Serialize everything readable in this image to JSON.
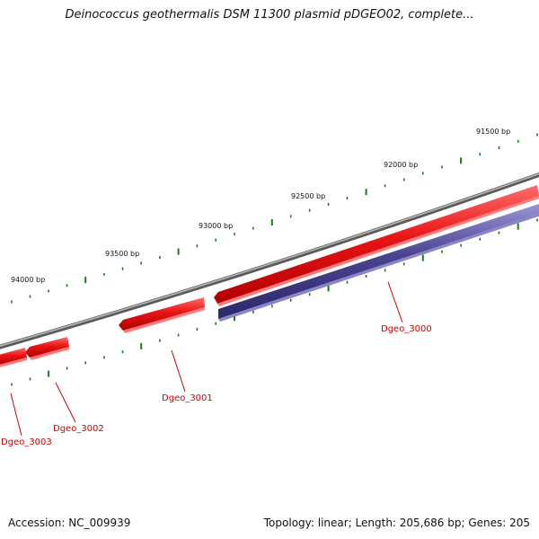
{
  "title": "Deinococcus geothermalis DSM 11300 plasmid pDGEO02, complete...",
  "colors": {
    "backbone": "#808080",
    "forward_gene": "#e01010",
    "reverse_gene": "#4a4490",
    "tick": "#1a7a1a",
    "gene_label": "#cc0000"
  },
  "ruler": {
    "ticks": [
      {
        "label": "91500 bp"
      },
      {
        "label": "92000 bp"
      },
      {
        "label": "92500 bp"
      },
      {
        "label": "93000 bp"
      },
      {
        "label": "93500 bp"
      },
      {
        "label": "94000 bp"
      }
    ]
  },
  "genes": [
    {
      "name": "Dgeo_3000",
      "strand": "reverse"
    },
    {
      "name": "Dgeo_3001",
      "strand": "forward"
    },
    {
      "name": "Dgeo_3002",
      "strand": "forward"
    },
    {
      "name": "Dgeo_3003",
      "strand": "forward"
    }
  ],
  "footer": {
    "accession": "Accession: NC_009939",
    "summary": "Topology: linear; Length: 205,686 bp; Genes: 205"
  }
}
